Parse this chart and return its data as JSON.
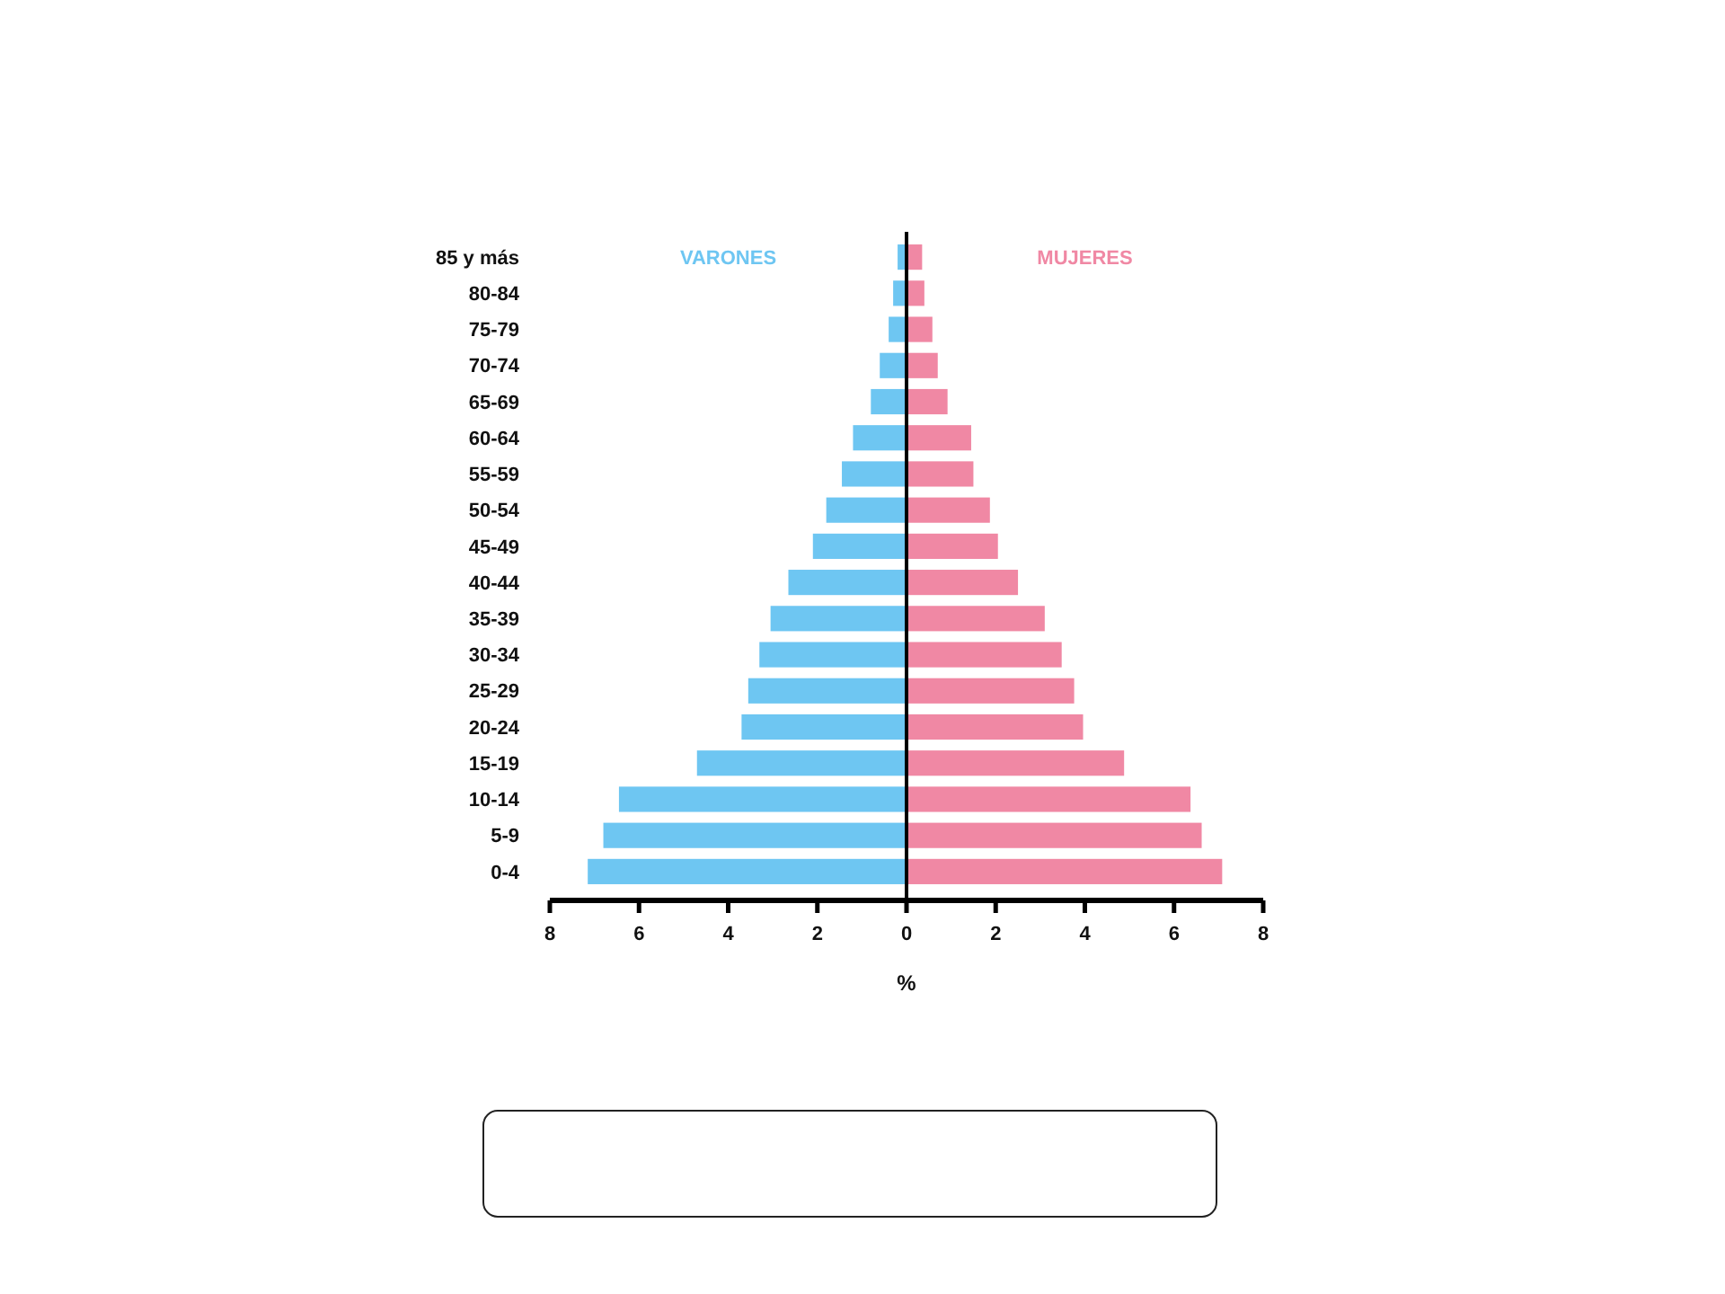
{
  "chart_data": {
    "type": "bar",
    "orientation": "horizontal",
    "stacked": true,
    "ref_lines": [
      {
        "axis": "x",
        "value": 0
      }
    ],
    "xlabel": "%",
    "categories": [
      "85 y más",
      "80-84",
      "75-79",
      "70-74",
      "65-69",
      "60-64",
      "55-59",
      "50-54",
      "45-49",
      "40-44",
      "35-39",
      "30-34",
      "25-29",
      "20-24",
      "15-19",
      "10-14",
      "5-9",
      "0-4"
    ],
    "series": [
      {
        "name": "VARONES",
        "color": "#6ec6f2",
        "values": [
          -0.2,
          -0.3,
          -0.4,
          -0.6,
          -0.8,
          -1.2,
          -1.45,
          -1.8,
          -2.1,
          -2.65,
          -3.05,
          -3.3,
          -3.55,
          -3.7,
          -4.7,
          -6.45,
          -6.8,
          -7.15
        ]
      },
      {
        "name": "MUJERES",
        "color": "#f088a4",
        "values": [
          0.35,
          0.4,
          0.58,
          0.7,
          0.92,
          1.45,
          1.5,
          1.87,
          2.05,
          2.5,
          3.1,
          3.48,
          3.76,
          3.96,
          4.88,
          6.37,
          6.62,
          7.08
        ]
      }
    ],
    "xlim": [
      -8,
      8
    ],
    "xticks": [
      {
        "value": -8,
        "label": "8"
      },
      {
        "value": -6,
        "label": "6"
      },
      {
        "value": -4,
        "label": "4"
      },
      {
        "value": -2,
        "label": "2"
      },
      0,
      2,
      4,
      6,
      8
    ],
    "grid": false
  }
}
